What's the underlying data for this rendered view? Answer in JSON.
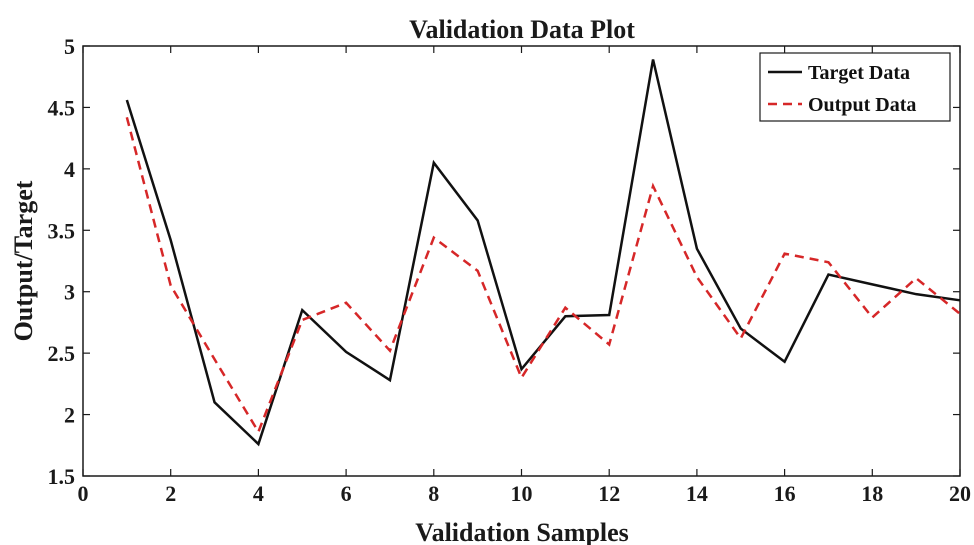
{
  "chart_data": {
    "type": "line",
    "title": "Validation Data Plot",
    "xlabel": "Validation Samples",
    "ylabel": "Output/Target",
    "xlim": [
      0,
      20
    ],
    "ylim": [
      1.5,
      5
    ],
    "xticks": [
      0,
      2,
      4,
      6,
      8,
      10,
      12,
      14,
      16,
      18,
      20
    ],
    "yticks": [
      1.5,
      2,
      2.5,
      3,
      3.5,
      4,
      4.5,
      5
    ],
    "xtick_labels": [
      "0",
      "2",
      "4",
      "6",
      "8",
      "10",
      "12",
      "14",
      "16",
      "18",
      "20"
    ],
    "ytick_labels": [
      "1.5",
      "2",
      "2.5",
      "3",
      "3.5",
      "4",
      "4.5",
      "5"
    ],
    "grid": false,
    "legend_position": "top-right",
    "x": [
      1,
      2,
      3,
      4,
      5,
      6,
      7,
      8,
      9,
      10,
      11,
      12,
      13,
      14,
      15,
      16,
      17,
      18,
      19,
      20
    ],
    "series": [
      {
        "name": "Target Data",
        "color": "#111111",
        "style": "solid",
        "values": [
          4.56,
          3.42,
          2.1,
          1.76,
          2.85,
          2.51,
          2.28,
          4.05,
          3.58,
          2.37,
          2.8,
          2.81,
          4.89,
          3.35,
          2.7,
          2.43,
          3.14,
          3.06,
          2.98,
          2.93
        ]
      },
      {
        "name": "Output Data",
        "color": "#d62728",
        "style": "dashed",
        "values": [
          4.42,
          3.05,
          2.45,
          1.86,
          2.77,
          2.91,
          2.52,
          3.44,
          3.17,
          2.3,
          2.87,
          2.57,
          3.86,
          3.12,
          2.62,
          3.31,
          3.24,
          2.79,
          3.11,
          2.82
        ]
      }
    ]
  }
}
